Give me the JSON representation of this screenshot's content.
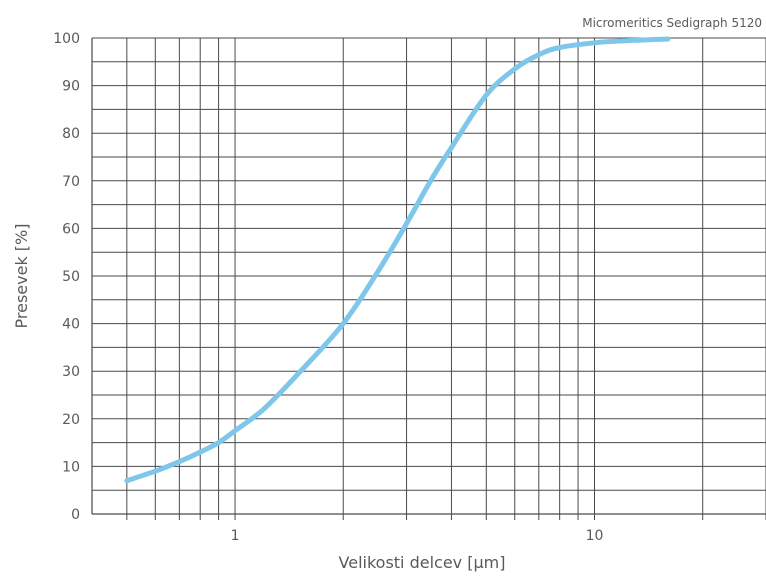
{
  "chart_data": {
    "type": "line",
    "annotation": "Micromeritics Sedigraph 5120",
    "xlabel": "Velikosti delcev [µm]",
    "ylabel": "Presevek [%]",
    "x_scale": "log",
    "xlim": [
      0.4,
      30
    ],
    "ylim": [
      0,
      100
    ],
    "x_ticks": [
      1,
      10
    ],
    "x_tick_labels": [
      "1",
      "10"
    ],
    "y_ticks": [
      0,
      10,
      20,
      30,
      40,
      50,
      60,
      70,
      80,
      90,
      100
    ],
    "y_tick_labels": [
      "0",
      "10",
      "20",
      "30",
      "40",
      "50",
      "60",
      "70",
      "80",
      "90",
      "100"
    ],
    "grid": true,
    "series_color": "#7ec6ea",
    "grid_color": "#4a4a4a",
    "series": [
      {
        "x": [
          0.5,
          0.6,
          0.7,
          0.8,
          0.9,
          1.0,
          1.2,
          1.5,
          2.0,
          2.5,
          3.0,
          3.5,
          4.0,
          5.0,
          6.0,
          7.0,
          8.0,
          10.0,
          12.0,
          16.0
        ],
        "y": [
          7,
          9,
          11,
          13,
          15,
          17.5,
          22,
          29.5,
          40,
          51,
          61,
          70,
          77,
          88,
          93.5,
          96.5,
          98,
          99,
          99.4,
          99.8
        ]
      }
    ]
  }
}
